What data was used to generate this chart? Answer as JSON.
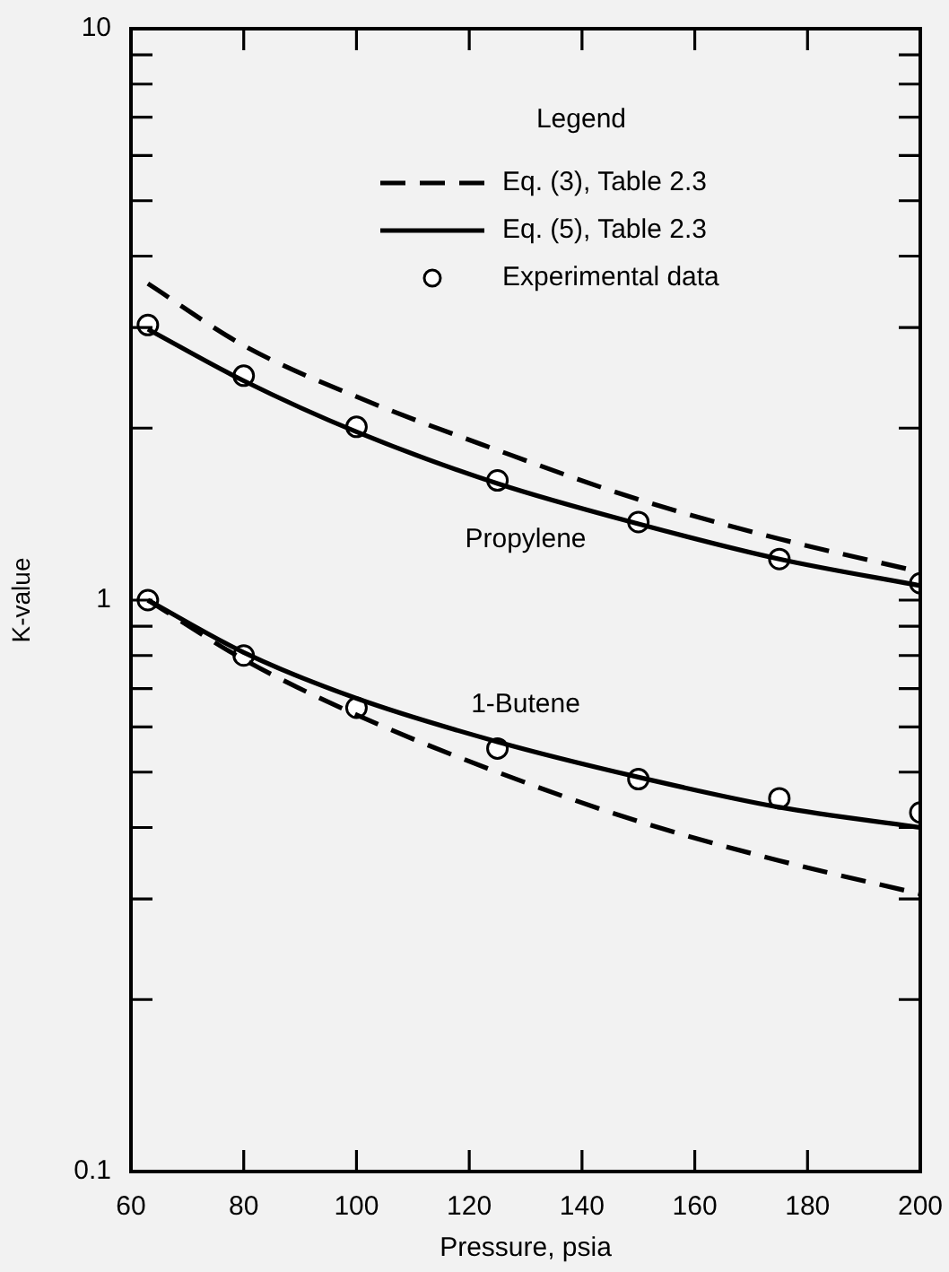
{
  "chart_data": {
    "type": "line",
    "xlabel": "Pressure, psia",
    "ylabel": "K-value",
    "legend_title": "Legend",
    "legend": "top right",
    "log": "y",
    "grid": false,
    "xlim": [
      60,
      200
    ],
    "xticks": [
      60,
      80,
      100,
      120,
      140,
      160,
      180,
      200
    ],
    "ylim": [
      0.1,
      10
    ],
    "yticks": [
      0.1,
      {
        "value": 0.2,
        "label": null
      },
      {
        "value": 0.3,
        "label": null
      },
      {
        "value": 0.4,
        "label": null
      },
      {
        "value": 0.5,
        "label": null
      },
      {
        "value": 0.6,
        "label": null
      },
      {
        "value": 0.7,
        "label": null
      },
      {
        "value": 0.8,
        "label": null
      },
      {
        "value": 0.9,
        "label": null
      },
      1,
      {
        "value": 2,
        "label": null
      },
      {
        "value": 3,
        "label": null
      },
      {
        "value": 4,
        "label": null
      },
      {
        "value": 5,
        "label": null
      },
      {
        "value": 6,
        "label": null
      },
      {
        "value": 7,
        "label": null
      },
      {
        "value": 8,
        "label": null
      },
      {
        "value": 9,
        "label": null
      },
      10
    ],
    "series": [
      {
        "name": "Eq. (3), Table 2.3",
        "line_style": "dashed",
        "marker": "none",
        "color": "#000000",
        "x": [
          63,
          80,
          100,
          125,
          150,
          175,
          200
        ],
        "values": [
          3.58,
          2.79,
          2.27,
          1.83,
          1.5,
          1.28,
          1.12
        ]
      },
      {
        "name": "Eq. (5), Table 2.3",
        "line_style": "solid",
        "marker": "none",
        "color": "#000000",
        "x": [
          63,
          80,
          100,
          125,
          150,
          175,
          200
        ],
        "values": [
          2.98,
          2.42,
          1.97,
          1.6,
          1.36,
          1.18,
          1.06
        ]
      },
      {
        "name": "Experimental data",
        "type": "scatter",
        "marker": "circle",
        "color": "#000000",
        "x": [
          63,
          80,
          100,
          125,
          150,
          175,
          200
        ],
        "values": [
          3.03,
          2.47,
          2.01,
          1.62,
          1.37,
          1.18,
          1.07
        ]
      },
      {
        "line_style": "dashed",
        "marker": "none",
        "color": "#000000",
        "x": [
          63,
          80,
          100,
          125,
          150,
          175,
          200
        ],
        "values": [
          1.0,
          0.787,
          0.63,
          0.5,
          0.41,
          0.35,
          0.306
        ]
      },
      {
        "line_style": "solid",
        "marker": "none",
        "color": "#000000",
        "x": [
          63,
          80,
          100,
          125,
          150,
          175,
          200
        ],
        "values": [
          1.0,
          0.81,
          0.673,
          0.565,
          0.49,
          0.434,
          0.4
        ]
      },
      {
        "type": "scatter",
        "marker": "circle",
        "color": "#000000",
        "x": [
          63,
          80,
          100,
          125,
          150,
          175,
          200
        ],
        "values": [
          1.0,
          0.8,
          0.648,
          0.55,
          0.486,
          0.45,
          0.425
        ]
      }
    ],
    "annotations": [
      "Propylene",
      "1-Butene"
    ]
  }
}
